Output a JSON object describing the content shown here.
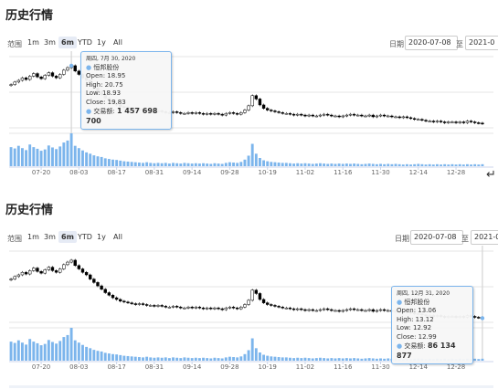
{
  "panels": [
    {
      "title": "历史行情",
      "range_label": "范围",
      "range_buttons": [
        "1m",
        "3m",
        "6m",
        "YTD",
        "1y",
        "All"
      ],
      "active_range": "6m",
      "from_label": "日期",
      "from_value": "2020-07-08",
      "to_label": "至",
      "to_value": "2021-0",
      "tooltip": {
        "date": "周四, 7月 30, 2020",
        "name": "恒邦股份",
        "open": "Open: 18.95",
        "high": "High: 20.75",
        "low": "Low: 18.93",
        "close": "Close: 19.83",
        "volume_label": "交易额:",
        "volume_value": "1 457 698 700"
      }
    },
    {
      "title": "历史行情",
      "range_label": "范围",
      "range_buttons": [
        "1m",
        "3m",
        "6m",
        "YTD",
        "1y",
        "All"
      ],
      "active_range": "6m",
      "from_label": "日期",
      "from_value": "2020-07-08",
      "to_label": "至",
      "to_value": "2021-0",
      "tooltip": {
        "date": "周四, 12月 31, 2020",
        "name": "恒邦股份",
        "open": "Open: 13.06",
        "high": "High: 13.12",
        "low": "Low: 12.92",
        "close": "Close: 12.99",
        "volume_label": "交易额:",
        "volume_value": "86 134 877"
      }
    }
  ],
  "return_glyph": "↵",
  "colors": {
    "volume_bar": "#7cb5ec",
    "candle_stroke": "#000000",
    "grid": "#e6e6e6",
    "crosshair": "#cccccc"
  },
  "chart_data": {
    "type": "candlestick+volume",
    "series_name": "恒邦股份",
    "x_tick_labels": [
      "07-20",
      "08-03",
      "08-17",
      "08-31",
      "09-14",
      "09-28",
      "10-19",
      "11-02",
      "11-16",
      "11-30",
      "12-14",
      "12-28"
    ],
    "tick_index": [
      8,
      18,
      28,
      38,
      48,
      58,
      68,
      78,
      88,
      98,
      108,
      118
    ],
    "highlight_index": [
      16,
      125
    ],
    "close": [
      17.6,
      17.9,
      18.1,
      18.4,
      18.2,
      18.6,
      18.9,
      18.5,
      18.3,
      18.7,
      19.0,
      18.6,
      18.4,
      18.8,
      19.3,
      19.6,
      19.83,
      19.2,
      18.8,
      18.4,
      18.1,
      17.6,
      17.2,
      16.8,
      16.4,
      16.0,
      15.7,
      15.4,
      15.2,
      15.0,
      14.9,
      14.8,
      14.7,
      14.6,
      14.7,
      14.6,
      14.5,
      14.5,
      14.4,
      14.5,
      14.4,
      14.3,
      14.3,
      14.4,
      14.3,
      14.2,
      14.2,
      14.3,
      14.2,
      14.3,
      14.2,
      14.1,
      14.2,
      14.1,
      14.2,
      14.1,
      14.0,
      14.2,
      14.3,
      14.2,
      14.1,
      14.3,
      14.6,
      15.1,
      16.3,
      15.9,
      15.2,
      14.8,
      14.6,
      14.5,
      14.4,
      14.3,
      14.2,
      14.2,
      14.1,
      14.0,
      14.1,
      14.0,
      13.9,
      14.0,
      13.9,
      13.9,
      14.0,
      14.1,
      14.0,
      13.9,
      13.9,
      13.8,
      13.9,
      14.0,
      14.1,
      14.0,
      14.0,
      13.9,
      13.9,
      14.0,
      13.8,
      13.9,
      14.0,
      13.9,
      13.9,
      13.8,
      13.8,
      13.7,
      13.8,
      13.7,
      13.6,
      13.5,
      13.5,
      13.4,
      13.3,
      13.3,
      13.2,
      13.3,
      13.2,
      13.1,
      13.2,
      13.2,
      13.1,
      13.2,
      13.1,
      13.3,
      13.2,
      13.1,
      13.06,
      12.99
    ],
    "volume": [
      0.58,
      0.54,
      0.62,
      0.55,
      0.49,
      0.66,
      0.58,
      0.53,
      0.47,
      0.51,
      0.63,
      0.57,
      0.52,
      0.6,
      0.72,
      0.78,
      1.0,
      0.62,
      0.55,
      0.48,
      0.42,
      0.38,
      0.33,
      0.3,
      0.28,
      0.24,
      0.22,
      0.2,
      0.19,
      0.17,
      0.15,
      0.14,
      0.13,
      0.12,
      0.11,
      0.1,
      0.12,
      0.1,
      0.09,
      0.1,
      0.09,
      0.1,
      0.08,
      0.1,
      0.09,
      0.08,
      0.1,
      0.09,
      0.08,
      0.09,
      0.08,
      0.09,
      0.08,
      0.07,
      0.09,
      0.08,
      0.07,
      0.1,
      0.12,
      0.11,
      0.1,
      0.13,
      0.2,
      0.32,
      0.68,
      0.38,
      0.25,
      0.18,
      0.15,
      0.13,
      0.12,
      0.11,
      0.1,
      0.1,
      0.09,
      0.08,
      0.09,
      0.08,
      0.09,
      0.08,
      0.07,
      0.08,
      0.09,
      0.08,
      0.07,
      0.08,
      0.07,
      0.08,
      0.07,
      0.08,
      0.07,
      0.08,
      0.07,
      0.06,
      0.07,
      0.08,
      0.07,
      0.06,
      0.07,
      0.06,
      0.07,
      0.06,
      0.07,
      0.06,
      0.05,
      0.06,
      0.05,
      0.06,
      0.07,
      0.06,
      0.05,
      0.06,
      0.05,
      0.06,
      0.05,
      0.06,
      0.05,
      0.06,
      0.05,
      0.06,
      0.05,
      0.06,
      0.05,
      0.06,
      0.05,
      0.06
    ]
  }
}
